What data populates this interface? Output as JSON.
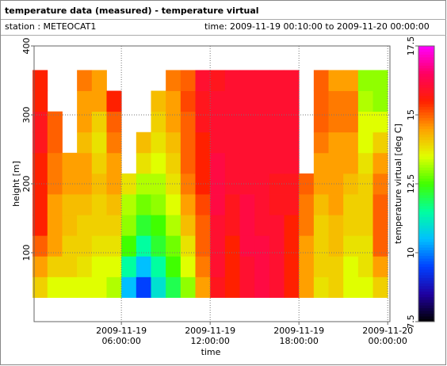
{
  "header": {
    "title": "temperature data (measured) - temperature virtual",
    "station": "station : METEOCAT1",
    "time_range": "time: 2009-11-19 00:10:00 to 2009-11-20 00:00:00"
  },
  "chart_data": {
    "type": "heatmap",
    "x_label": "time",
    "y_label": "height [m]",
    "colorbar_label": "temperature virtual [deg C]",
    "x": [
      0.5,
      1.5,
      2.5,
      3.5,
      4.5,
      5.5,
      6.5,
      7.5,
      8.5,
      9.5,
      10.5,
      11.5,
      12.5,
      13.5,
      14.5,
      15.5,
      16.5,
      17.5,
      18.5,
      19.5,
      20.5,
      21.5,
      22.5,
      23.5
    ],
    "y": [
      50,
      80,
      110,
      140,
      170,
      200,
      230,
      260,
      290,
      320,
      350
    ],
    "values": [
      [
        14,
        14.5,
        15,
        15.5,
        15.5,
        15.5,
        15.5,
        15.8,
        15.8,
        15.5,
        15.5
      ],
      [
        13.5,
        14,
        14.5,
        14.5,
        14.5,
        14.8,
        14.8,
        15,
        15,
        null,
        null
      ],
      [
        13.5,
        14,
        14,
        14.2,
        14.2,
        14.5,
        14.5,
        null,
        null,
        null,
        null
      ],
      [
        13.5,
        13.8,
        14,
        14,
        14.2,
        14.5,
        14.5,
        14.2,
        14.5,
        14.5,
        14.8
      ],
      [
        13.5,
        13.5,
        13.8,
        14,
        14,
        14.2,
        14,
        13.8,
        14,
        14.5,
        14.5
      ],
      [
        13.2,
        13.5,
        13.8,
        14,
        14.2,
        14.5,
        14.5,
        14.8,
        15,
        15.5,
        null
      ],
      [
        10.5,
        11.5,
        12.5,
        13,
        13.2,
        13.8,
        null,
        null,
        null,
        null,
        null
      ],
      [
        9.5,
        10.5,
        11.5,
        12.2,
        12.8,
        13.2,
        13.8,
        14.2,
        null,
        null,
        null
      ],
      [
        11,
        11.5,
        12.2,
        12.5,
        13,
        13.2,
        13.5,
        13.8,
        14,
        14.2,
        null
      ],
      [
        12,
        12.5,
        12.8,
        13.2,
        13.5,
        13.8,
        14,
        14.2,
        14.5,
        14.5,
        14.8
      ],
      [
        13,
        13.5,
        13.8,
        14.2,
        14.5,
        14.8,
        15,
        15,
        15,
        15.2,
        15
      ],
      [
        14.5,
        14.8,
        15,
        15,
        15.2,
        15.5,
        15.5,
        15.5,
        15.8,
        15.8,
        16
      ],
      [
        15.8,
        16,
        16,
        16,
        16.2,
        16.2,
        16.2,
        16,
        16,
        16,
        15.8
      ],
      [
        15.5,
        15.5,
        15.5,
        15.8,
        15.8,
        16,
        16,
        16,
        16,
        16,
        16
      ],
      [
        16,
        16,
        16.2,
        16.2,
        16.2,
        16,
        16,
        16,
        16,
        16,
        16
      ],
      [
        16.2,
        16.2,
        16.2,
        16,
        16,
        16,
        16,
        16,
        16,
        16,
        16
      ],
      [
        16,
        16,
        16,
        16,
        15.8,
        15.8,
        16,
        16,
        16,
        16,
        16
      ],
      [
        15.5,
        15.5,
        15.5,
        15.5,
        15.8,
        15.8,
        16,
        16,
        16,
        16,
        16
      ],
      [
        14.5,
        14.5,
        14.5,
        14.8,
        14.8,
        15,
        null,
        null,
        null,
        null,
        null
      ],
      [
        13.8,
        14,
        14,
        14,
        14.2,
        14.5,
        14.5,
        14.8,
        15,
        15,
        15
      ],
      [
        14,
        14,
        14.2,
        14.2,
        14.5,
        14.5,
        14.5,
        14.5,
        14.8,
        14.8,
        14.5
      ],
      [
        13.5,
        13.5,
        13.8,
        14,
        14,
        14.2,
        14.5,
        14.5,
        14.8,
        14.8,
        14.5
      ],
      [
        13.5,
        13.8,
        13.8,
        14,
        14,
        14,
        13.8,
        13.5,
        13.5,
        13.2,
        13
      ],
      [
        14,
        14.5,
        15,
        15,
        15,
        14.8,
        14.5,
        14,
        13.5,
        13,
        13
      ]
    ],
    "xlim": [
      0.1,
      24.15
    ],
    "xticks": [
      {
        "value": 6,
        "label": "2009-11-19\n06:00:00"
      },
      {
        "value": 12,
        "label": "2009-11-19\n12:00:00"
      },
      {
        "value": 18,
        "label": "2009-11-19\n18:00:00"
      },
      {
        "value": 24,
        "label": "2009-11-20\n00:00:00"
      }
    ],
    "ylim": [
      0,
      400
    ],
    "yticks": [
      100,
      200,
      300,
      400
    ],
    "zlim": [
      7.5,
      17.5
    ],
    "zticks": [
      7.5,
      10,
      12.5,
      15,
      17.5
    ],
    "colormap": [
      "#000000",
      "#2000a0",
      "#0040ff",
      "#00c0ff",
      "#00ffa0",
      "#40ff00",
      "#e0ff00",
      "#ffa000",
      "#ff2000",
      "#ff0060",
      "#ff00ff"
    ],
    "grid": true
  }
}
